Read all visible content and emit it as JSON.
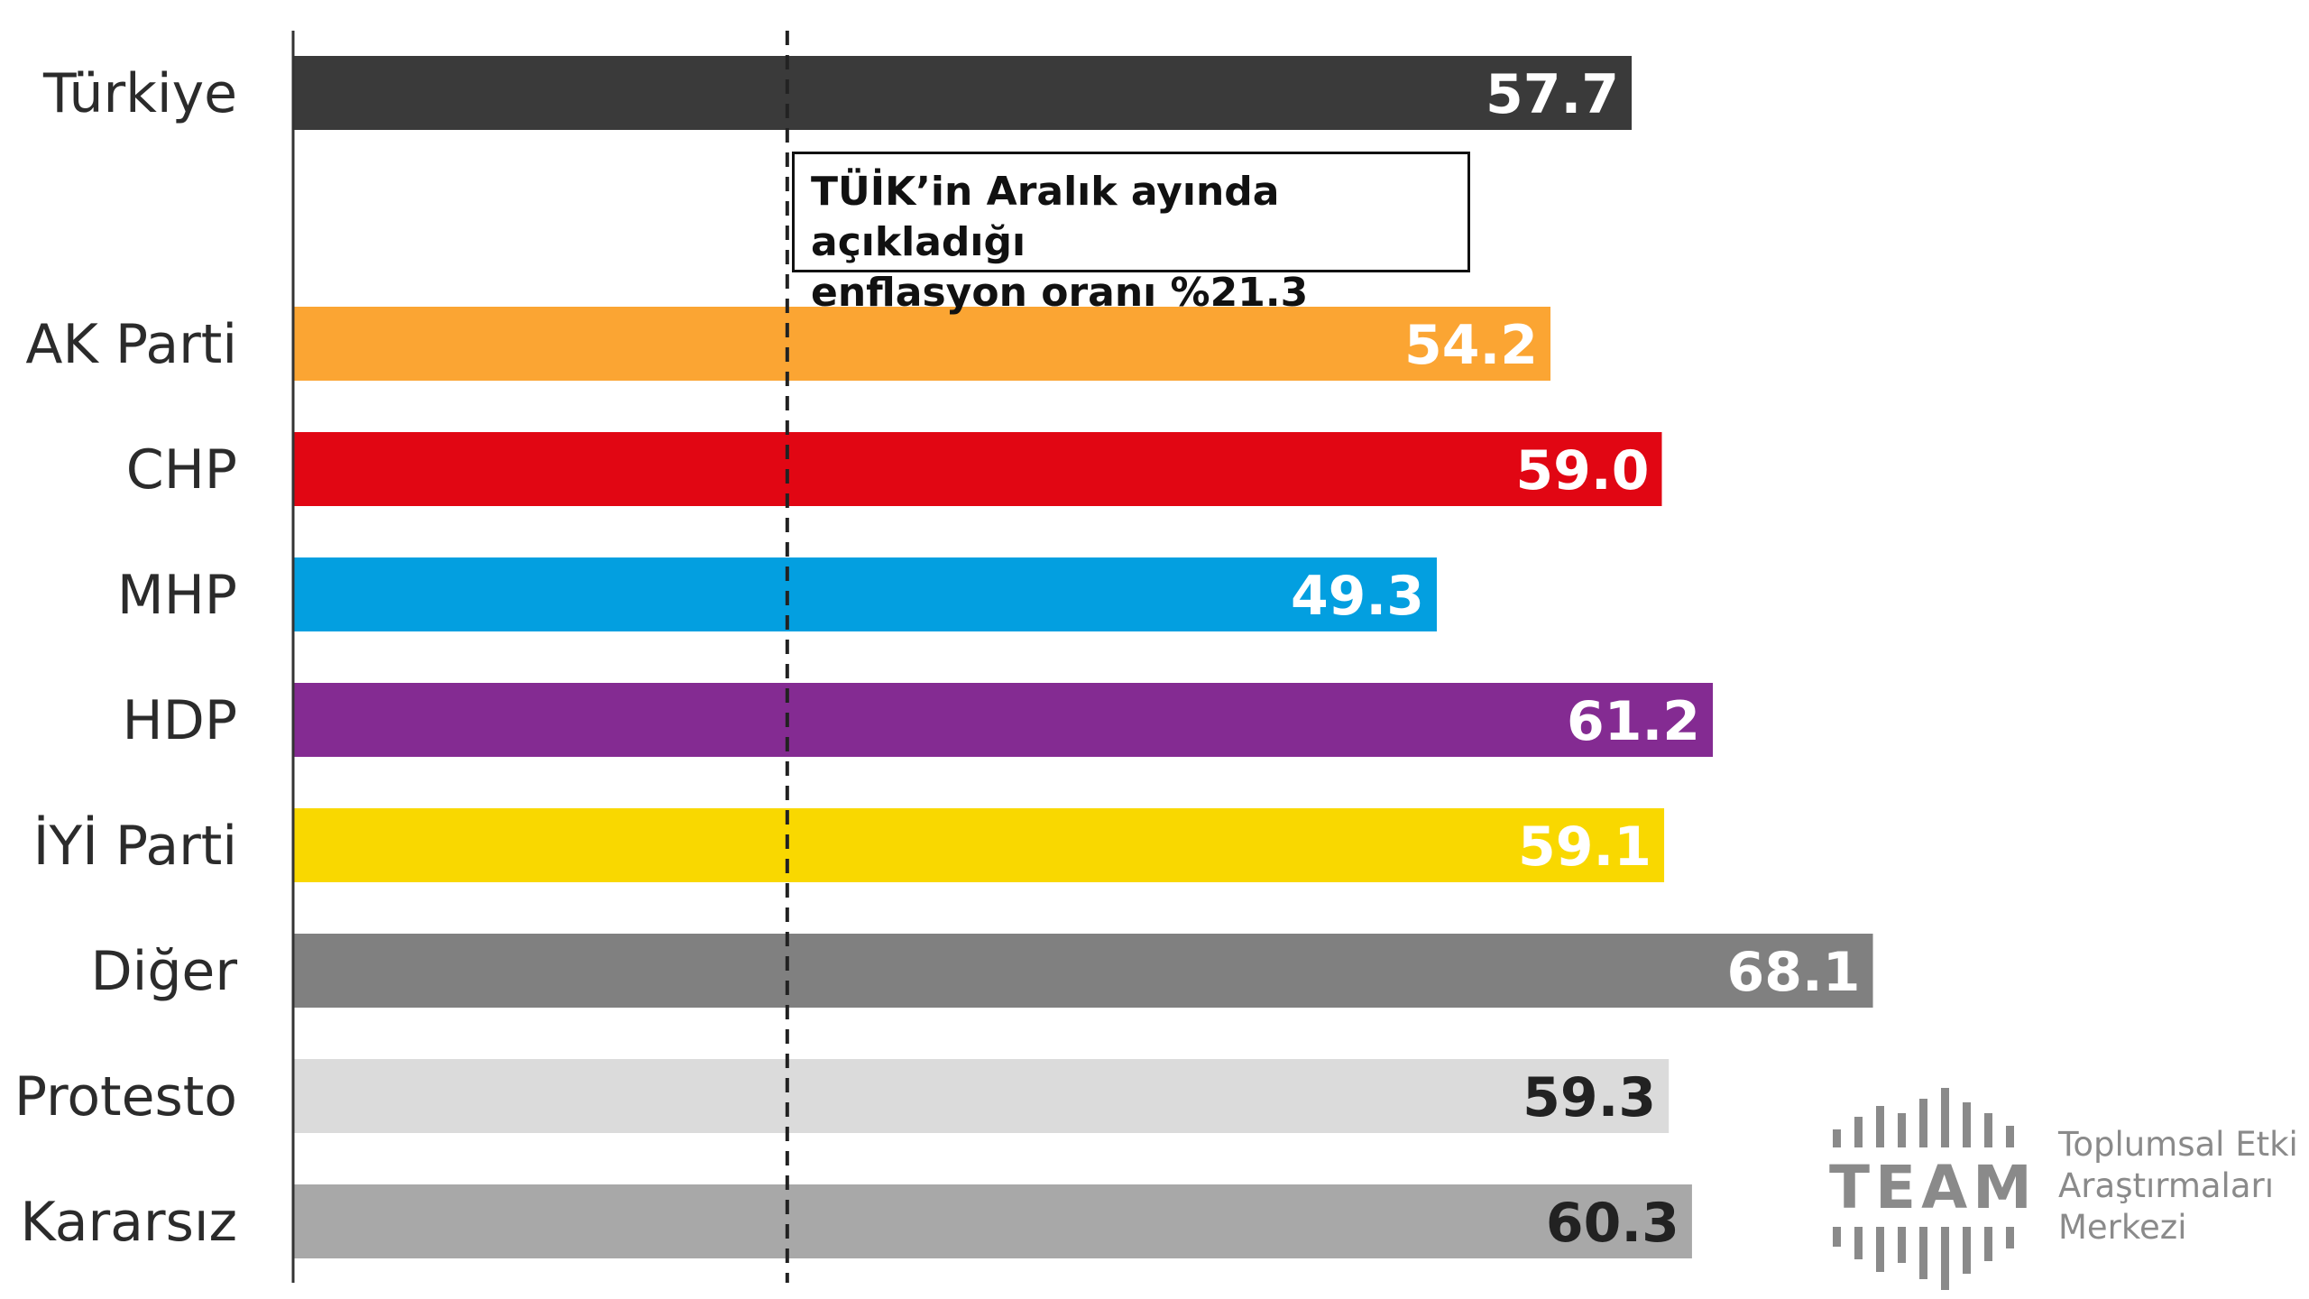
{
  "chart_data": {
    "type": "bar",
    "orientation": "horizontal",
    "categories": [
      "Türkiye",
      "AK Parti",
      "CHP",
      "MHP",
      "HDP",
      "İYİ Parti",
      "Diğer",
      "Protesto",
      "Kararsız"
    ],
    "values": [
      57.7,
      54.2,
      59.0,
      49.3,
      61.2,
      59.1,
      68.1,
      59.3,
      60.3
    ],
    "value_labels": [
      "57.7",
      "54.2",
      "59.0",
      "49.3",
      "61.2",
      "59.1",
      "68.1",
      "59.3",
      "60.3"
    ],
    "colors": [
      "#3a3a3a",
      "#fba533",
      "#e10613",
      "#039fe0",
      "#842b92",
      "#f9d800",
      "#808080",
      "#dbdbdb",
      "#a8a8a8"
    ],
    "label_colors": [
      "#ffffff",
      "#ffffff",
      "#ffffff",
      "#ffffff",
      "#ffffff",
      "#ffffff",
      "#ffffff",
      "#222222",
      "#222222"
    ],
    "xlim": [
      0,
      75
    ],
    "reference_line": {
      "value": 21.3,
      "style": "dashed"
    },
    "grid": false,
    "legend": "none"
  },
  "annotation": {
    "line1": "TÜİK’in Aralık ayında açıkladığı",
    "line2": "enflasyon oranı %21.3"
  },
  "logo": {
    "word": "TEAM",
    "line1": "Toplumsal Etki",
    "line2": "Araştırmaları",
    "line3": "Merkezi"
  }
}
